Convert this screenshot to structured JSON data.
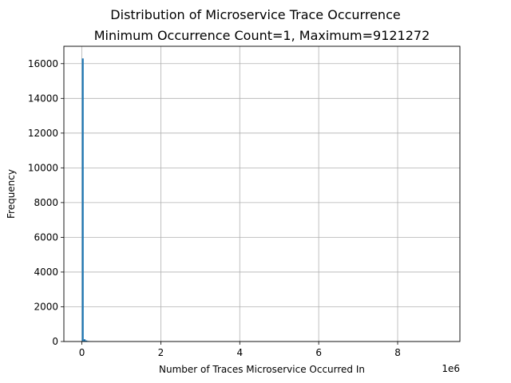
{
  "chart_data": {
    "type": "bar",
    "title": "Distribution of Microservice Trace Occurrence",
    "subtitle": "Minimum Occurrence Count=1, Maximum=9121272",
    "xlabel": "Number of Traces Microservice Occurred In",
    "ylabel": "Frequency",
    "x_offset_text": "1e6",
    "xlim": [
      -456063,
      9577335
    ],
    "ylim": [
      0,
      17000
    ],
    "x_ticks": [
      0,
      2000000,
      4000000,
      6000000,
      8000000
    ],
    "x_tick_labels": [
      "0",
      "2",
      "4",
      "6",
      "8"
    ],
    "y_ticks": [
      0,
      2000,
      4000,
      6000,
      8000,
      10000,
      12000,
      14000,
      16000
    ],
    "y_tick_labels": [
      "0",
      "2000",
      "4000",
      "6000",
      "8000",
      "10000",
      "12000",
      "14000",
      "16000"
    ],
    "grid": true,
    "bar_color": "#1f77b4",
    "bins": [
      {
        "x0": 1,
        "x1": 45607,
        "value": 16300
      },
      {
        "x0": 45607,
        "x1": 91213,
        "value": 130
      },
      {
        "x0": 91213,
        "x1": 136820,
        "value": 60
      },
      {
        "x0": 136820,
        "x1": 182426,
        "value": 30
      },
      {
        "x0": 182426,
        "x1": 228033,
        "value": 15
      },
      {
        "x0": 228033,
        "x1": 273639,
        "value": 8
      }
    ]
  }
}
